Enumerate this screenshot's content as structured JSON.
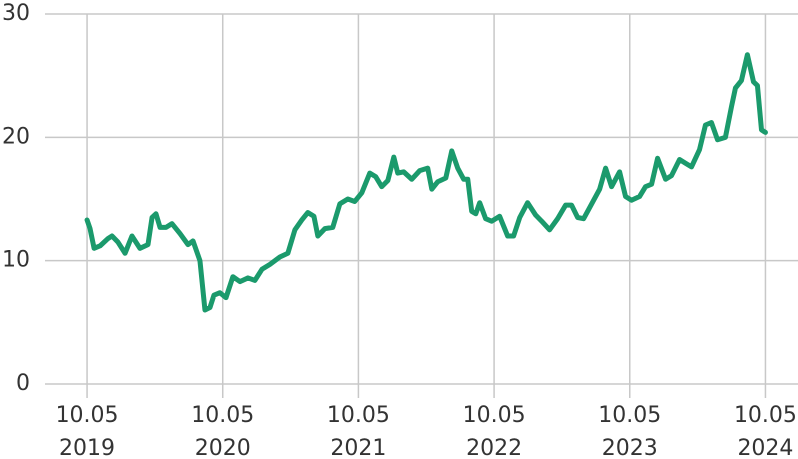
{
  "chart_data": {
    "type": "line",
    "x": [
      2019.0,
      2019.022,
      2019.052,
      2019.096,
      2019.155,
      2019.184,
      2019.228,
      2019.28,
      2019.331,
      2019.39,
      2019.449,
      2019.479,
      2019.508,
      2019.538,
      2019.582,
      2019.626,
      2019.685,
      2019.744,
      2019.781,
      2019.832,
      2019.869,
      2019.906,
      2019.935,
      2019.979,
      2020.024,
      2020.075,
      2020.127,
      2020.186,
      2020.237,
      2020.289,
      2020.348,
      2020.421,
      2020.48,
      2020.532,
      2020.583,
      2020.627,
      2020.672,
      2020.701,
      2020.753,
      2020.811,
      2020.863,
      2020.922,
      2020.973,
      2021.025,
      2021.084,
      2021.128,
      2021.172,
      2021.217,
      2021.261,
      2021.29,
      2021.334,
      2021.393,
      2021.452,
      2021.511,
      2021.541,
      2021.585,
      2021.644,
      2021.688,
      2021.732,
      2021.776,
      2021.806,
      2021.835,
      2021.865,
      2021.894,
      2021.938,
      2021.982,
      2022.041,
      2022.1,
      2022.144,
      2022.189,
      2022.247,
      2022.306,
      2022.351,
      2022.409,
      2022.468,
      2022.527,
      2022.571,
      2022.616,
      2022.66,
      2022.719,
      2022.778,
      2022.822,
      2022.866,
      2022.925,
      2022.969,
      2023.013,
      2023.072,
      2023.116,
      2023.161,
      2023.205,
      2023.264,
      2023.308,
      2023.367,
      2023.411,
      2023.455,
      2023.514,
      2023.558,
      2023.602,
      2023.647,
      2023.705,
      2023.75,
      2023.779,
      2023.823,
      2023.867,
      2023.912,
      2023.941,
      2023.971,
      2024.0
    ],
    "series": [
      {
        "color": "#1b9a6c",
        "values": [
          13.3,
          12.6,
          11.0,
          11.2,
          11.8,
          12.0,
          11.5,
          10.6,
          12.0,
          11.0,
          11.3,
          13.5,
          13.8,
          12.7,
          12.7,
          13.0,
          12.2,
          11.3,
          11.6,
          10.0,
          6.0,
          6.2,
          7.2,
          7.4,
          7.0,
          8.7,
          8.3,
          8.6,
          8.4,
          9.3,
          9.7,
          10.3,
          10.6,
          12.5,
          13.3,
          13.9,
          13.6,
          12.0,
          12.6,
          12.7,
          14.6,
          15.0,
          14.8,
          15.5,
          17.1,
          16.8,
          16.0,
          16.5,
          18.4,
          17.1,
          17.2,
          16.6,
          17.3,
          17.5,
          15.8,
          16.4,
          16.7,
          18.9,
          17.5,
          16.6,
          16.6,
          14.0,
          13.8,
          14.7,
          13.4,
          13.2,
          13.6,
          12.0,
          12.0,
          13.5,
          14.7,
          13.7,
          13.2,
          12.5,
          13.4,
          14.5,
          14.5,
          13.5,
          13.4,
          14.6,
          15.8,
          17.5,
          16.0,
          17.2,
          15.2,
          14.9,
          15.2,
          16.0,
          16.2,
          18.3,
          16.6,
          16.9,
          18.2,
          17.9,
          17.6,
          19.0,
          21.0,
          21.2,
          19.8,
          20.0,
          22.5,
          24.0,
          24.6,
          26.7,
          24.5,
          24.2,
          20.6,
          20.4
        ]
      }
    ],
    "xlim": [
      2018.69,
      2024.24
    ],
    "xticks": [
      {
        "value": 2019,
        "label": [
          "10.05",
          "2019"
        ]
      },
      {
        "value": 2020,
        "label": [
          "10.05",
          "2020"
        ]
      },
      {
        "value": 2021,
        "label": [
          "10.05",
          "2021"
        ]
      },
      {
        "value": 2022,
        "label": [
          "10.05",
          "2022"
        ]
      },
      {
        "value": 2023,
        "label": [
          "10.05",
          "2023"
        ]
      },
      {
        "value": 2024,
        "label": [
          "10.05",
          "2024"
        ]
      }
    ],
    "ylim": [
      0,
      30
    ],
    "yticks": [
      0,
      10,
      20,
      30
    ],
    "grid": true
  }
}
